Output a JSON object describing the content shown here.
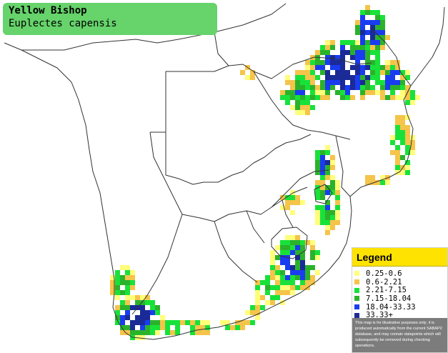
{
  "title": {
    "common_name": "Yellow Bishop",
    "scientific_name": "Euplectes capensis"
  },
  "legend": {
    "heading": "Legend",
    "items": [
      {
        "label": "0.25-0.6",
        "color": "#ffff7a"
      },
      {
        "label": "0.6-2.21",
        "color": "#f5c44a"
      },
      {
        "label": "2.21-7.15",
        "color": "#18e23a"
      },
      {
        "label": "7.15-18.04",
        "color": "#2bb22b"
      },
      {
        "label": "18.04-33.33",
        "color": "#1a3cf0"
      },
      {
        "label": "33.33+",
        "color": "#1a2a96"
      }
    ],
    "disclaimer": "This map is for illustrative purposes only; it is produced automatically from the current SABAP2 database, and may contain datapoints which will subsequently be removed during checking operations."
  },
  "colors": {
    "background": "#ffffff",
    "title_box": "#66d36b",
    "legend_header": "#ffe300",
    "border_line": "#333333",
    "range_yellow": "#ffff7a",
    "range_tan": "#f5c44a",
    "range_green": "#18e23a",
    "range_darkgreen": "#2bb22b",
    "range_blue": "#1a3cf0",
    "range_navy": "#1a2a96"
  }
}
